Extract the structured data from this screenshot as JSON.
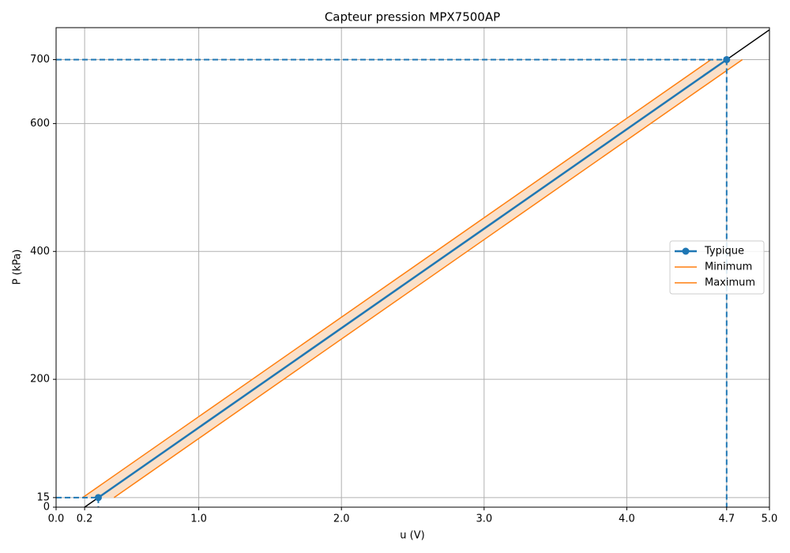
{
  "chart_data": {
    "type": "line",
    "title": "Capteur pression MPX7500AP",
    "x_label": "u (V)",
    "y_label": "P (kPa)",
    "xlim": [
      0,
      5
    ],
    "ylim": [
      0,
      750
    ],
    "xticks": [
      {
        "value": 0,
        "label": "0.0"
      },
      {
        "value": 0.2,
        "label": "0.2"
      },
      {
        "value": 1,
        "label": "1.0"
      },
      {
        "value": 2,
        "label": "2.0"
      },
      {
        "value": 3,
        "label": "3.0"
      },
      {
        "value": 4,
        "label": "4.0"
      },
      {
        "value": 4.7,
        "label": "4.7"
      },
      {
        "value": 5,
        "label": "5.0"
      }
    ],
    "yticks": [
      0,
      15,
      200,
      400,
      600,
      700
    ],
    "grid": true,
    "legend": "center right",
    "transfer_line": {
      "color": "#000000",
      "x": [
        0.2,
        5
      ],
      "y": [
        0,
        746.6
      ]
    },
    "band_color": "#fbe0c8",
    "series": [
      {
        "name": "Typique",
        "color": "#1f77b4",
        "x": [
          0.296,
          4.7
        ],
        "values": [
          15,
          700
        ]
      },
      {
        "name": "Minimum",
        "color": "#ff7f0e",
        "x": [
          0.186,
          4.59
        ],
        "values": [
          15,
          700
        ]
      },
      {
        "name": "Maximum",
        "color": "#ff7f0e",
        "x": [
          0.406,
          4.81
        ],
        "values": [
          15,
          700
        ]
      }
    ]
  }
}
